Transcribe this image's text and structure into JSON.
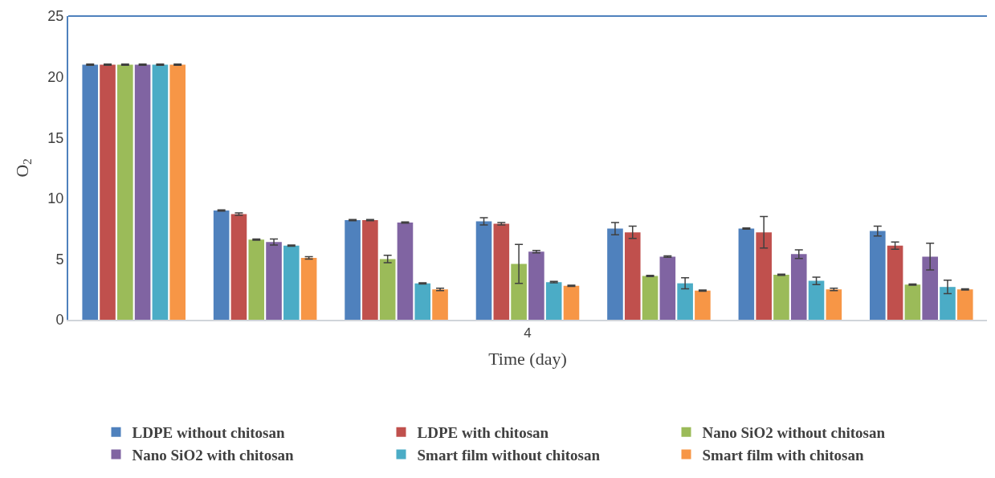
{
  "chart_data": {
    "type": "bar",
    "xlabel": "Time (day)",
    "ylabel": "O$_{2}$",
    "categories": [
      null,
      null,
      null,
      "4",
      null,
      null,
      null
    ],
    "ylim": [
      0,
      25
    ],
    "yticks": [
      0,
      5,
      10,
      15,
      20,
      25
    ],
    "grid": false,
    "legend": "bottom",
    "series": [
      {
        "name": "LDPE without chitosan",
        "color": "#4f81bd",
        "values": [
          21,
          9.0,
          8.2,
          8.1,
          7.5,
          7.5,
          7.3
        ],
        "errors": [
          0.05,
          0.05,
          0.05,
          0.3,
          0.5,
          0.05,
          0.4
        ]
      },
      {
        "name": "LDPE with chitosan",
        "color": "#c0504d",
        "values": [
          21,
          8.7,
          8.2,
          7.9,
          7.2,
          7.2,
          6.1
        ],
        "errors": [
          0.05,
          0.1,
          0.05,
          0.1,
          0.5,
          1.3,
          0.3
        ]
      },
      {
        "name": "Nano SiO2 without chitosan",
        "color": "#9bbb59",
        "values": [
          21,
          6.6,
          5.0,
          4.6,
          3.6,
          3.7,
          2.9
        ],
        "errors": [
          0.05,
          0.05,
          0.3,
          1.6,
          0.05,
          0.05,
          0.05
        ]
      },
      {
        "name": "Nano SiO2 with chitosan",
        "color": "#8064a2",
        "values": [
          21,
          6.4,
          8.0,
          5.6,
          5.2,
          5.4,
          5.2
        ],
        "errors": [
          0.05,
          0.25,
          0.05,
          0.1,
          0.05,
          0.35,
          1.1
        ]
      },
      {
        "name": "Smart film without chitosan",
        "color": "#4bacc6",
        "values": [
          21,
          6.1,
          3.0,
          3.1,
          3.0,
          3.2,
          2.7
        ],
        "errors": [
          0.05,
          0.05,
          0.05,
          0.05,
          0.45,
          0.3,
          0.55
        ]
      },
      {
        "name": "Smart film with chitosan",
        "color": "#f79646",
        "values": [
          21,
          5.1,
          2.5,
          2.8,
          2.4,
          2.5,
          2.5
        ],
        "errors": [
          0.05,
          0.1,
          0.1,
          0.05,
          0.05,
          0.1,
          0.05
        ]
      }
    ]
  }
}
